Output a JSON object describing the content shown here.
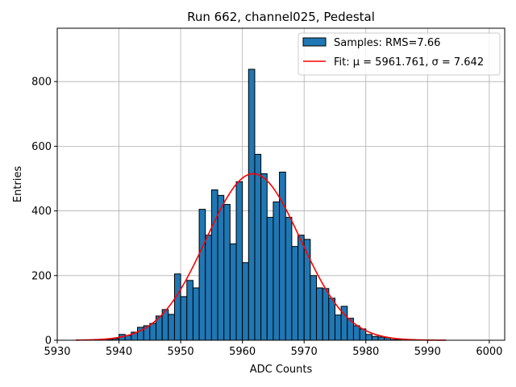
{
  "chart_data": {
    "type": "bar",
    "title": "Run 662, channel025, Pedestal",
    "xlabel": "ADC Counts",
    "ylabel": "Entries",
    "xlim": [
      5930,
      6002.5
    ],
    "ylim": [
      0,
      965
    ],
    "xticks": [
      5930,
      5940,
      5950,
      5960,
      5970,
      5980,
      5990,
      6000
    ],
    "yticks": [
      0,
      200,
      400,
      600,
      800
    ],
    "grid": true,
    "legend_position": "top-right",
    "histogram": {
      "name": "Samples: RMS=7.66",
      "color": "#1f77b4",
      "bin_width": 1,
      "bin_start": 5938,
      "values": [
        2,
        5,
        18,
        15,
        25,
        40,
        45,
        52,
        75,
        95,
        80,
        205,
        135,
        185,
        162,
        405,
        325,
        465,
        448,
        420,
        298,
        490,
        240,
        838,
        575,
        515,
        380,
        428,
        520,
        380,
        290,
        325,
        312,
        200,
        162,
        160,
        130,
        78,
        105,
        68,
        45,
        35,
        18,
        12,
        10,
        8,
        2,
        2,
        1
      ]
    },
    "fit": {
      "name": "Fit: μ = 5961.761, σ = 7.642",
      "color": "#ff0000",
      "mu": 5961.761,
      "sigma": 7.642,
      "amplitude": 515,
      "x_range": [
        5933,
        5993
      ]
    }
  }
}
